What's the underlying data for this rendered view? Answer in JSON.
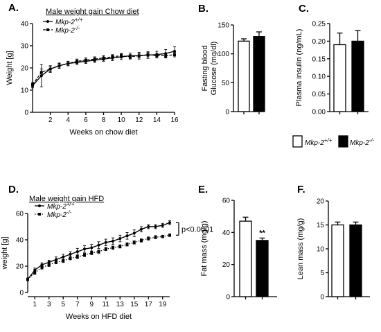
{
  "colors": {
    "ink": "#000000",
    "wt_fill": "#ffffff",
    "ko_fill": "#000000"
  },
  "shared_legend": {
    "wt": {
      "base": "Mkp-2",
      "sup": "+/+"
    },
    "ko": {
      "base": "Mkp-2",
      "sup": "-/-"
    }
  },
  "chart_data": [
    {
      "panel": "A.",
      "type": "line",
      "title": "Male weight gain Chow diet",
      "xlabel": "Weeks on chow diet",
      "ylabel": "Weight [g]",
      "xlim": [
        0,
        16
      ],
      "ylim": [
        0,
        40
      ],
      "xticks": [
        2,
        4,
        6,
        8,
        10,
        12,
        14,
        16
      ],
      "yticks": [
        0,
        10,
        20,
        30,
        40
      ],
      "legend": "top-left",
      "series": [
        {
          "name": {
            "base": "Mkp-2",
            "sup": "+/+"
          },
          "style": "solid",
          "x": [
            0,
            1,
            2,
            3,
            4,
            5,
            6,
            7,
            8,
            9,
            10,
            11,
            12,
            13,
            14,
            15,
            16
          ],
          "y": [
            12,
            16.5,
            19.5,
            21,
            22,
            22.5,
            23,
            23.5,
            24,
            24.5,
            25,
            25.5,
            25.5,
            25.8,
            26,
            26.5,
            27.5
          ],
          "err": [
            1,
            5,
            1.5,
            1.2,
            1,
            1,
            1,
            1,
            1,
            1.2,
            1.2,
            1.2,
            1.5,
            1.5,
            1.5,
            1.8,
            2
          ]
        },
        {
          "name": {
            "base": "Mkp-2",
            "sup": "-/-"
          },
          "style": "dashed",
          "x": [
            0,
            1,
            2,
            3,
            4,
            5,
            6,
            7,
            8,
            9,
            10,
            11,
            12,
            13,
            14,
            15,
            16
          ],
          "y": [
            12.5,
            18,
            19.5,
            21,
            22,
            23,
            23.5,
            24,
            24.5,
            25,
            25.5,
            25,
            25.5,
            26,
            25.5,
            25.5,
            26
          ],
          "err": [
            1,
            1.5,
            1.2,
            1,
            1,
            1,
            1,
            1,
            1,
            1,
            1,
            1,
            1,
            1,
            1,
            1,
            1
          ]
        }
      ]
    },
    {
      "panel": "B.",
      "type": "bar",
      "ylabel_lines": [
        "Fasting blood",
        "Glucose (mg/dl)"
      ],
      "ylim": [
        0,
        150
      ],
      "yticks": [
        0,
        50,
        100,
        150
      ],
      "values": [
        122,
        130
      ],
      "err": [
        4,
        8
      ]
    },
    {
      "panel": "C.",
      "type": "bar",
      "ylabel": "Plasma insulin (ng/mL)",
      "ylim": [
        0,
        0.25
      ],
      "yticks": [
        "0.00",
        "0.05",
        "0.10",
        "0.15",
        "0.20",
        "0.25"
      ],
      "values": [
        0.19,
        0.2
      ],
      "err": [
        0.033,
        0.03
      ]
    },
    {
      "panel": "D.",
      "type": "line",
      "title": "Male weight gain HFD",
      "xlabel": "Weeks on HFD diet",
      "ylabel": "weight [g]",
      "xlim": [
        0,
        20
      ],
      "ylim": [
        0,
        60
      ],
      "xticks": [
        1,
        3,
        5,
        7,
        9,
        11,
        13,
        15,
        17,
        19
      ],
      "yticks": [
        0,
        20,
        40,
        60
      ],
      "legend": "top-left",
      "annotation": "p<0.0001",
      "series": [
        {
          "name": {
            "base": "Mkp-2",
            "sup": "+/+"
          },
          "style": "solid",
          "x": [
            0,
            1,
            2,
            3,
            4,
            5,
            6,
            7,
            8,
            9,
            10,
            11,
            12,
            13,
            14,
            15,
            16,
            17,
            18,
            19,
            20
          ],
          "y": [
            10,
            17,
            21,
            23,
            25,
            27,
            29,
            31,
            33,
            34,
            36,
            38,
            39,
            41,
            43,
            45,
            48,
            50,
            50,
            51,
            53
          ],
          "err": [
            1,
            1.5,
            1.5,
            1.5,
            2,
            2,
            2,
            2.5,
            2.5,
            2.5,
            2.5,
            2.5,
            2.5,
            2.5,
            2.5,
            2.5,
            2,
            1.5,
            1.5,
            1.5,
            1.5
          ]
        },
        {
          "name": {
            "base": "Mkp-2",
            "sup": "-/-"
          },
          "style": "dotted",
          "x": [
            0,
            1,
            2,
            3,
            4,
            5,
            6,
            7,
            8,
            9,
            10,
            11,
            12,
            13,
            14,
            15,
            16,
            17,
            18,
            19,
            20
          ],
          "y": [
            10,
            15,
            19,
            21,
            23,
            24,
            26,
            27,
            28.5,
            30,
            31,
            33,
            34,
            35,
            36.5,
            38,
            39.5,
            41,
            42,
            42.5,
            43.5
          ],
          "err": [
            1,
            1.2,
            1.2,
            1.2,
            1.2,
            1.2,
            1.2,
            1.2,
            1.2,
            1.2,
            1.2,
            1.2,
            1.2,
            1.2,
            1.2,
            1.2,
            1.2,
            1.2,
            1.2,
            1,
            1
          ]
        }
      ]
    },
    {
      "panel": "E.",
      "type": "bar",
      "ylabel": "Fat mass (mg/g)",
      "ylim": [
        0,
        60
      ],
      "yticks": [
        0,
        20,
        40,
        60
      ],
      "values": [
        47,
        35
      ],
      "err": [
        2.5,
        1.5
      ],
      "annotation": "**"
    },
    {
      "panel": "F.",
      "type": "bar",
      "ylabel": "Lean mass (mg/g)",
      "ylim": [
        0,
        20
      ],
      "yticks": [
        0,
        5,
        10,
        15,
        20
      ],
      "values": [
        15,
        15
      ],
      "err": [
        0.6,
        0.6
      ]
    }
  ]
}
